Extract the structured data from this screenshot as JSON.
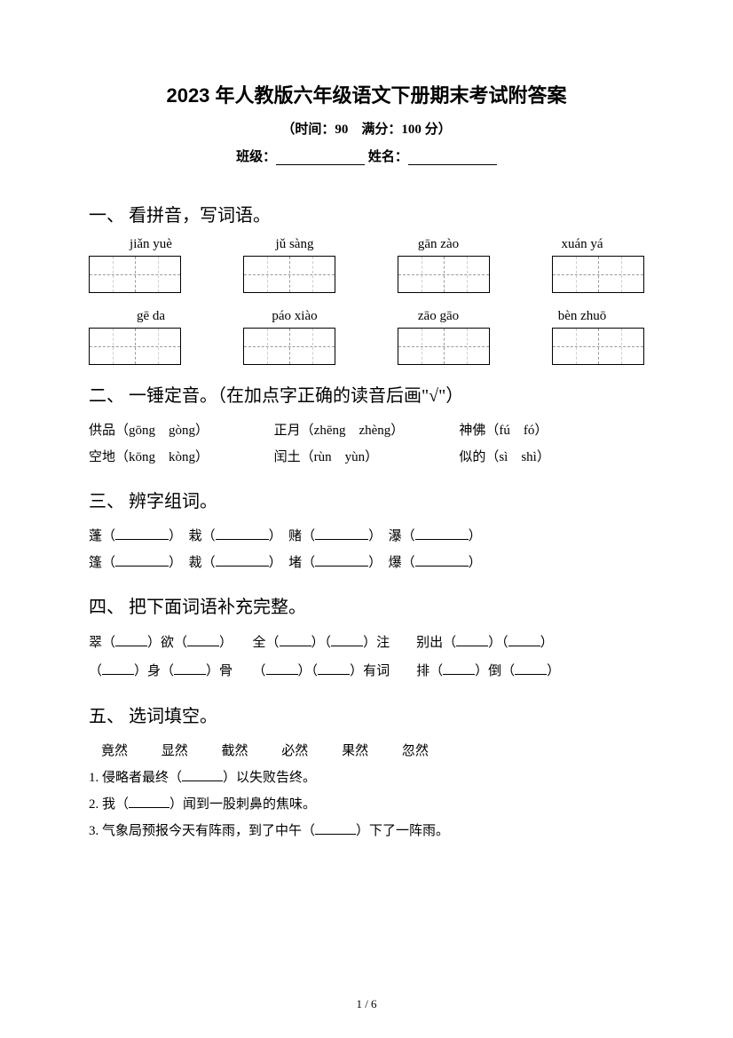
{
  "title": "2023 年人教版六年级语文下册期末考试附答案",
  "subtitle_time": "（时间：90",
  "subtitle_score": "满分：100 分）",
  "class_label": "班级：",
  "name_label": "姓名：",
  "section1": {
    "title": "一、 看拼音，写词语。",
    "row1": [
      "jiǎn yuè",
      "jǔ sàng",
      "gān zào",
      "xuán yá"
    ],
    "row2": [
      "gē da",
      "páo xiào",
      "zāo gāo",
      "bèn zhuō"
    ]
  },
  "section2": {
    "title": "二、 一锤定音。（在加点字正确的读音后画\"√\"）",
    "items": [
      [
        "供品（gōng　gòng）",
        "正月（zhēng　zhèng）",
        "神佛（fú　fó）"
      ],
      [
        "空地（kōng　kòng）",
        "闰土（rùn　yùn）",
        "似的（sì　shì）"
      ]
    ]
  },
  "section3": {
    "title": "三、 辨字组词。",
    "row1": [
      "蓬",
      "栽",
      "赌",
      "瀑"
    ],
    "row2": [
      "篷",
      "裁",
      "堵",
      "爆"
    ]
  },
  "section4": {
    "title": "四、 把下面词语补充完整。",
    "line1_parts": [
      "翠（",
      "）欲（",
      "）　　全（",
      "）（",
      "）注　　别出（",
      "）（",
      "）"
    ],
    "line2_parts": [
      "（",
      "）身（",
      "）骨　　（",
      "）（",
      "）有词　　排（",
      "）倒（",
      "）"
    ]
  },
  "section5": {
    "title": "五、 选词填空。",
    "words": [
      "竟然",
      "显然",
      "截然",
      "必然",
      "果然",
      "忽然"
    ],
    "items": [
      "1. 侵略者最终（",
      "）以失败告终。",
      "2. 我（",
      "）闻到一股刺鼻的焦味。",
      "3. 气象局预报今天有阵雨，到了中午（",
      "）下了一阵雨。"
    ]
  },
  "page_num": "1 / 6"
}
